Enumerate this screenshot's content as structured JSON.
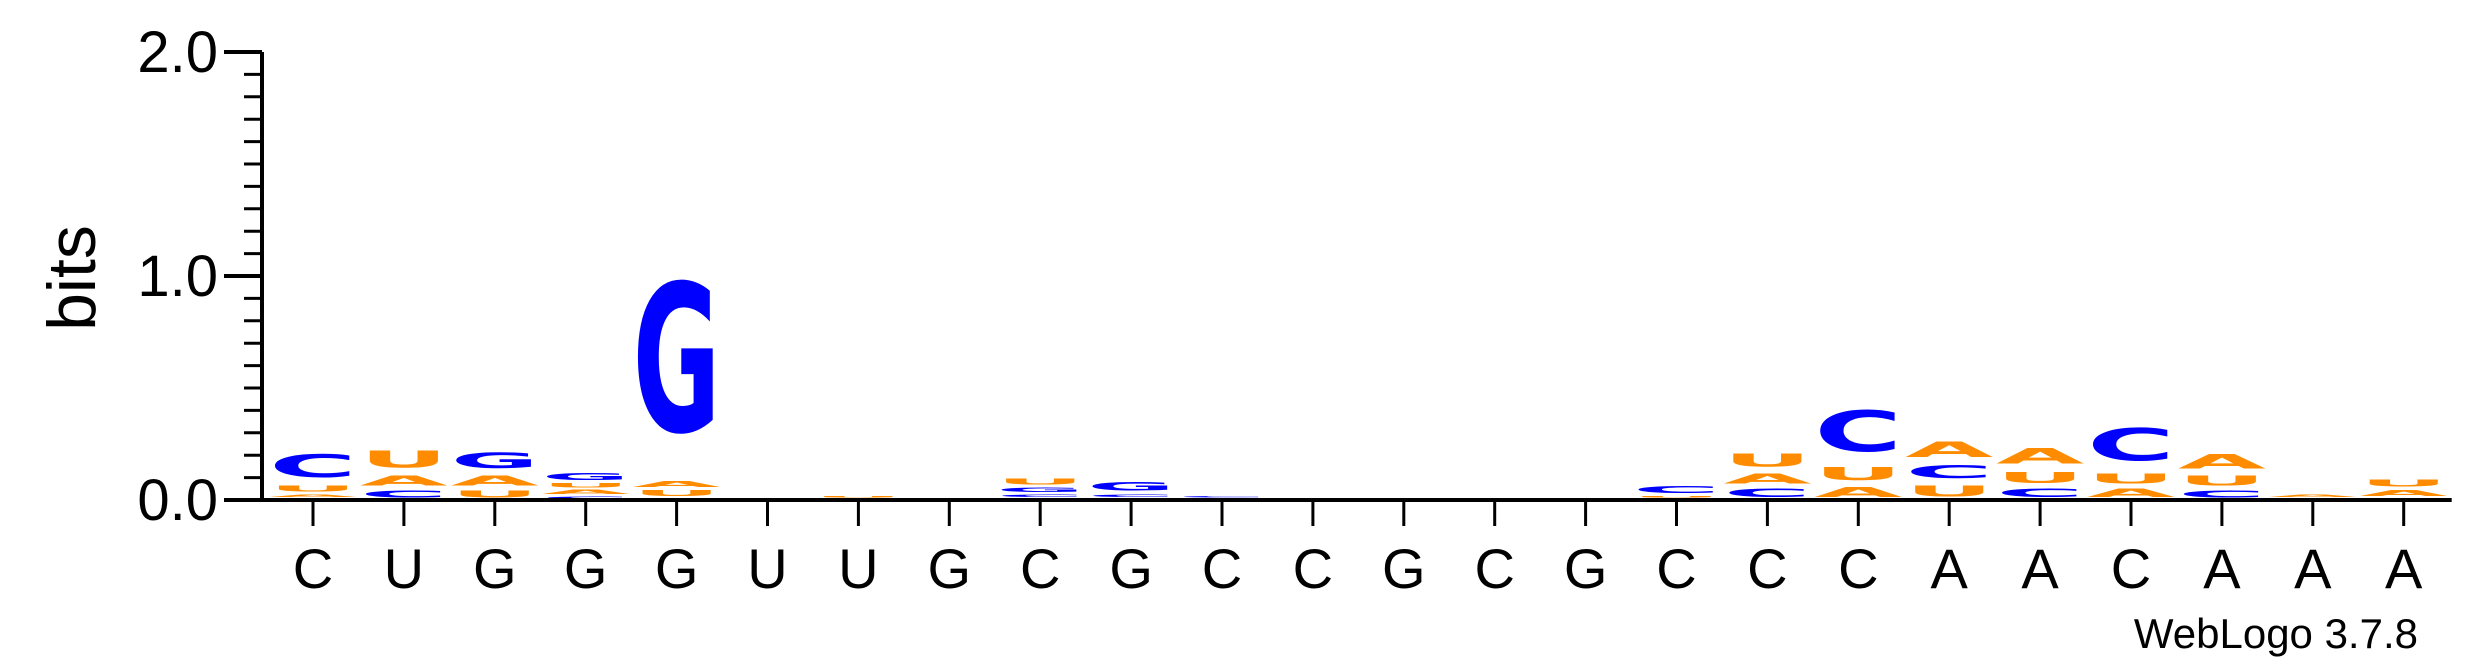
{
  "chart_data": {
    "type": "sequence-logo",
    "ylabel": "bits",
    "ylim": [
      0,
      2.0
    ],
    "yticks": [
      "0.0",
      "1.0",
      "2.0"
    ],
    "credit": "WebLogo 3.7.8",
    "colors": {
      "G": "#0000ff",
      "C": "#0000ff",
      "A": "#ff8c00",
      "U": "#ff8c00"
    },
    "positions": [
      {
        "label": "C",
        "stack": [
          {
            "letter": "G",
            "bits": 0.01
          },
          {
            "letter": "A",
            "bits": 0.02
          },
          {
            "letter": "U",
            "bits": 0.04
          },
          {
            "letter": "C",
            "bits": 0.16
          }
        ]
      },
      {
        "label": "U",
        "stack": [
          {
            "letter": "C",
            "bits": 0.05
          },
          {
            "letter": "A",
            "bits": 0.07
          },
          {
            "letter": "U",
            "bits": 0.12
          }
        ]
      },
      {
        "label": "G",
        "stack": [
          {
            "letter": "U",
            "bits": 0.05
          },
          {
            "letter": "A",
            "bits": 0.07
          },
          {
            "letter": "G",
            "bits": 0.11
          }
        ]
      },
      {
        "label": "G",
        "stack": [
          {
            "letter": "C",
            "bits": 0.02
          },
          {
            "letter": "A",
            "bits": 0.03
          },
          {
            "letter": "U",
            "bits": 0.03
          },
          {
            "letter": "G",
            "bits": 0.05
          }
        ]
      },
      {
        "label": "G",
        "stack": [
          {
            "letter": "C",
            "bits": 0.01
          },
          {
            "letter": "U",
            "bits": 0.04
          },
          {
            "letter": "A",
            "bits": 0.04
          },
          {
            "letter": "G",
            "bits": 1.06
          }
        ]
      },
      {
        "label": "U",
        "stack": []
      },
      {
        "label": "U",
        "stack": [
          {
            "letter": "A",
            "bits": 0.01
          },
          {
            "letter": "U",
            "bits": 0.01
          }
        ]
      },
      {
        "label": "G",
        "stack": []
      },
      {
        "label": "C",
        "stack": [
          {
            "letter": "A",
            "bits": 0.01
          },
          {
            "letter": "C",
            "bits": 0.02
          },
          {
            "letter": "G",
            "bits": 0.03
          },
          {
            "letter": "U",
            "bits": 0.04
          }
        ]
      },
      {
        "label": "G",
        "stack": [
          {
            "letter": "A",
            "bits": 0.01
          },
          {
            "letter": "C",
            "bits": 0.02
          },
          {
            "letter": "G",
            "bits": 0.06
          }
        ]
      },
      {
        "label": "C",
        "stack": [
          {
            "letter": "A",
            "bits": 0.01
          },
          {
            "letter": "C",
            "bits": 0.01
          }
        ]
      },
      {
        "label": "C",
        "stack": []
      },
      {
        "label": "G",
        "stack": []
      },
      {
        "label": "C",
        "stack": [
          {
            "letter": "C",
            "bits": 0.01
          }
        ]
      },
      {
        "label": "G",
        "stack": []
      },
      {
        "label": "C",
        "stack": [
          {
            "letter": "A",
            "bits": 0.01
          },
          {
            "letter": "U",
            "bits": 0.01
          },
          {
            "letter": "C",
            "bits": 0.05
          }
        ]
      },
      {
        "label": "C",
        "stack": [
          {
            "letter": "C",
            "bits": 0.06
          },
          {
            "letter": "A",
            "bits": 0.07
          },
          {
            "letter": "U",
            "bits": 0.09
          }
        ]
      },
      {
        "label": "C",
        "stack": [
          {
            "letter": "A",
            "bits": 0.07
          },
          {
            "letter": "U",
            "bits": 0.09
          },
          {
            "letter": "C",
            "bits": 0.29
          }
        ]
      },
      {
        "label": "A",
        "stack": [
          {
            "letter": "U",
            "bits": 0.08
          },
          {
            "letter": "C",
            "bits": 0.09
          },
          {
            "letter": "A",
            "bits": 0.11
          }
        ]
      },
      {
        "label": "A",
        "stack": [
          {
            "letter": "C",
            "bits": 0.06
          },
          {
            "letter": "U",
            "bits": 0.08
          },
          {
            "letter": "A",
            "bits": 0.11
          }
        ]
      },
      {
        "label": "C",
        "stack": [
          {
            "letter": "A",
            "bits": 0.06
          },
          {
            "letter": "U",
            "bits": 0.07
          },
          {
            "letter": "C",
            "bits": 0.23
          }
        ]
      },
      {
        "label": "A",
        "stack": [
          {
            "letter": "C",
            "bits": 0.05
          },
          {
            "letter": "U",
            "bits": 0.07
          },
          {
            "letter": "A",
            "bits": 0.1
          }
        ]
      },
      {
        "label": "A",
        "stack": [
          {
            "letter": "C",
            "bits": 0.01
          },
          {
            "letter": "A",
            "bits": 0.02
          }
        ]
      },
      {
        "label": "A",
        "stack": [
          {
            "letter": "C",
            "bits": 0.01
          },
          {
            "letter": "A",
            "bits": 0.04
          },
          {
            "letter": "U",
            "bits": 0.05
          }
        ]
      }
    ]
  }
}
